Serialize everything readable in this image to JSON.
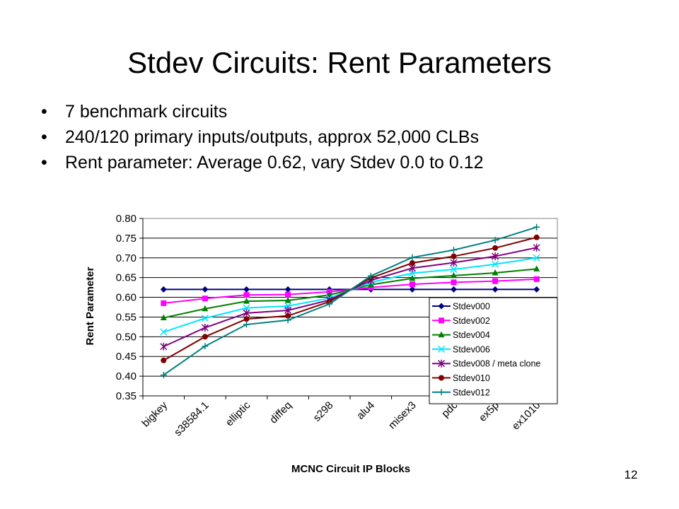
{
  "slide": {
    "title": "Stdev Circuits: Rent Parameters",
    "bullets": [
      "7 benchmark circuits",
      "240/120 primary inputs/outputs, approx 52,000 CLBs",
      "Rent parameter: Average 0.62, vary Stdev 0.0 to 0.12"
    ],
    "page_number": "12"
  },
  "chart_data": {
    "type": "line",
    "title": "",
    "xlabel": "MCNC Circuit IP Blocks",
    "ylabel": "Rent Parameter",
    "ylim": [
      0.35,
      0.8
    ],
    "yticks": [
      "0.35",
      "0.40",
      "0.45",
      "0.50",
      "0.55",
      "0.60",
      "0.65",
      "0.70",
      "0.75",
      "0.80"
    ],
    "grid": "horizontal",
    "legend_position": "right",
    "categories": [
      "bigkey",
      "s38584.1",
      "elliptic",
      "diffeq",
      "s298",
      "alu4",
      "misex3",
      "pdc",
      "ex5p",
      "ex1010"
    ],
    "series": [
      {
        "name": "Stdev000",
        "color": "#000080",
        "marker": "diamond",
        "values": [
          0.62,
          0.62,
          0.62,
          0.62,
          0.62,
          0.62,
          0.62,
          0.62,
          0.62,
          0.62
        ]
      },
      {
        "name": "Stdev002",
        "color": "#ff00ff",
        "marker": "square",
        "values": [
          0.585,
          0.597,
          0.606,
          0.607,
          0.614,
          0.625,
          0.633,
          0.638,
          0.641,
          0.646
        ]
      },
      {
        "name": "Stdev004",
        "color": "#008000",
        "marker": "triangle",
        "values": [
          0.548,
          0.571,
          0.59,
          0.592,
          0.606,
          0.632,
          0.648,
          0.655,
          0.662,
          0.672
        ]
      },
      {
        "name": "Stdev006",
        "color": "#00e5ff",
        "marker": "x",
        "values": [
          0.512,
          0.547,
          0.573,
          0.578,
          0.598,
          0.638,
          0.661,
          0.671,
          0.684,
          0.7
        ]
      },
      {
        "name": "Stdev008 / meta clone",
        "color": "#800080",
        "marker": "star",
        "values": [
          0.475,
          0.523,
          0.56,
          0.567,
          0.593,
          0.643,
          0.674,
          0.688,
          0.704,
          0.726
        ]
      },
      {
        "name": "Stdev010",
        "color": "#800000",
        "marker": "circle",
        "values": [
          0.44,
          0.5,
          0.545,
          0.553,
          0.589,
          0.649,
          0.687,
          0.704,
          0.725,
          0.752
        ]
      },
      {
        "name": "Stdev012",
        "color": "#008080",
        "marker": "plus",
        "values": [
          0.403,
          0.476,
          0.531,
          0.542,
          0.583,
          0.654,
          0.701,
          0.72,
          0.745,
          0.778
        ]
      }
    ]
  }
}
